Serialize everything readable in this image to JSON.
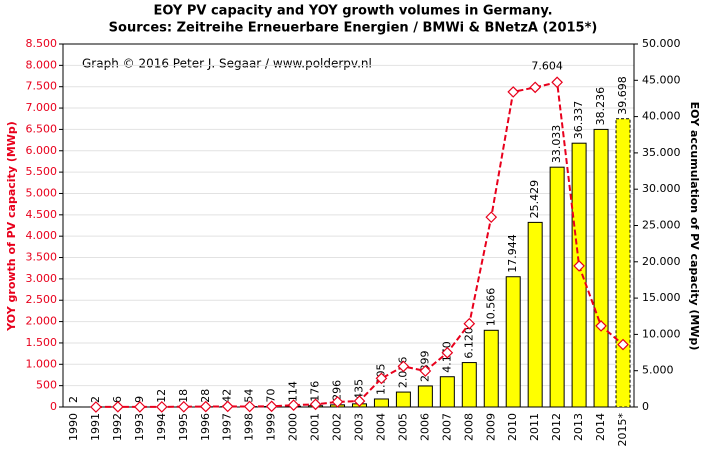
{
  "chart_data": {
    "type": "bar_line",
    "title": "EOY PV capacity and YOY growth volumes in Germany.",
    "subtitle": "Sources: Zeitreihe Erneuerbare Energien / BMWi & BNetzA (2015*)",
    "annotation": "Graph © 2016 Peter J. Segaar / www.polderpv.nl",
    "ylabel": "YOY growth of PV capacity (MWp)",
    "y2label": "EOY accumulation of PV capacity (MWp)",
    "categories": [
      "1990",
      "1991",
      "1992",
      "1993",
      "1994",
      "1995",
      "1996",
      "1997",
      "1998",
      "1999",
      "2000",
      "2001",
      "2002",
      "2003",
      "2004",
      "2005",
      "2006",
      "2007",
      "2008",
      "2009",
      "2010",
      "2011",
      "2012",
      "2013",
      "2014",
      "2015*"
    ],
    "series": [
      {
        "name": "EOY accumulation",
        "type": "bar",
        "axis": "y2",
        "color": "#ffff00",
        "values": [
          2,
          2,
          6,
          9,
          12,
          18,
          28,
          42,
          54,
          70,
          114,
          176,
          296,
          435,
          1105,
          2056,
          2899,
          4170,
          6120,
          10566,
          17944,
          25429,
          33033,
          36337,
          38236,
          39698
        ],
        "value_labels": [
          "2",
          "2",
          "6",
          "9",
          "12",
          "18",
          "28",
          "42",
          "54",
          "70",
          "114",
          "176",
          "296",
          "435",
          "1.105",
          "2.056",
          "2.899",
          "4.170",
          "6.120",
          "10.566",
          "17.944",
          "25.429",
          "33.033",
          "36.337",
          "38.236",
          "39.698"
        ]
      },
      {
        "name": "YOY growth",
        "type": "line",
        "axis": "y",
        "color": "#e8001c",
        "values": [
          null,
          0,
          4,
          3,
          3,
          6,
          10,
          14,
          12,
          16,
          44,
          62,
          120,
          139,
          670,
          951,
          843,
          1271,
          1950,
          4446,
          7378,
          7485,
          7604,
          3304,
          1899,
          1462
        ],
        "value_labels": [
          null,
          null,
          null,
          null,
          null,
          null,
          null,
          null,
          null,
          null,
          null,
          null,
          null,
          null,
          null,
          null,
          null,
          null,
          null,
          null,
          null,
          null,
          "7.604",
          null,
          null,
          null
        ]
      }
    ],
    "ylim": [
      0,
      8500
    ],
    "yticks": [
      0,
      500,
      {
        "value": 1000,
        "label": "1.000"
      },
      {
        "value": 1500,
        "label": "1.500"
      },
      {
        "value": 2000,
        "label": "2.000"
      },
      {
        "value": 2500,
        "label": "2.500"
      },
      {
        "value": 3000,
        "label": "3.000"
      },
      {
        "value": 3500,
        "label": "3.500"
      },
      {
        "value": 4000,
        "label": "4.000"
      },
      {
        "value": 4500,
        "label": "4.500"
      },
      {
        "value": 5000,
        "label": "5.000"
      },
      {
        "value": 5500,
        "label": "5.500"
      },
      {
        "value": 6000,
        "label": "6.000"
      },
      {
        "value": 6500,
        "label": "6.500"
      },
      {
        "value": 7000,
        "label": "7.000"
      },
      {
        "value": 7500,
        "label": "7.500"
      },
      {
        "value": 8000,
        "label": "8.000"
      },
      {
        "value": 8500,
        "label": "8.500"
      }
    ],
    "y2lim": [
      0,
      50000
    ],
    "y2ticks": [
      0,
      {
        "value": 5000,
        "label": "5.000"
      },
      {
        "value": 10000,
        "label": "10.000"
      },
      {
        "value": 15000,
        "label": "15.000"
      },
      {
        "value": 20000,
        "label": "20.000"
      },
      {
        "value": 25000,
        "label": "25.000"
      },
      {
        "value": 30000,
        "label": "30.000"
      },
      {
        "value": 35000,
        "label": "35.000"
      },
      {
        "value": 40000,
        "label": "40.000"
      },
      {
        "value": 45000,
        "label": "45.000"
      },
      {
        "value": 50000,
        "label": "50.000"
      }
    ],
    "grid": true
  }
}
